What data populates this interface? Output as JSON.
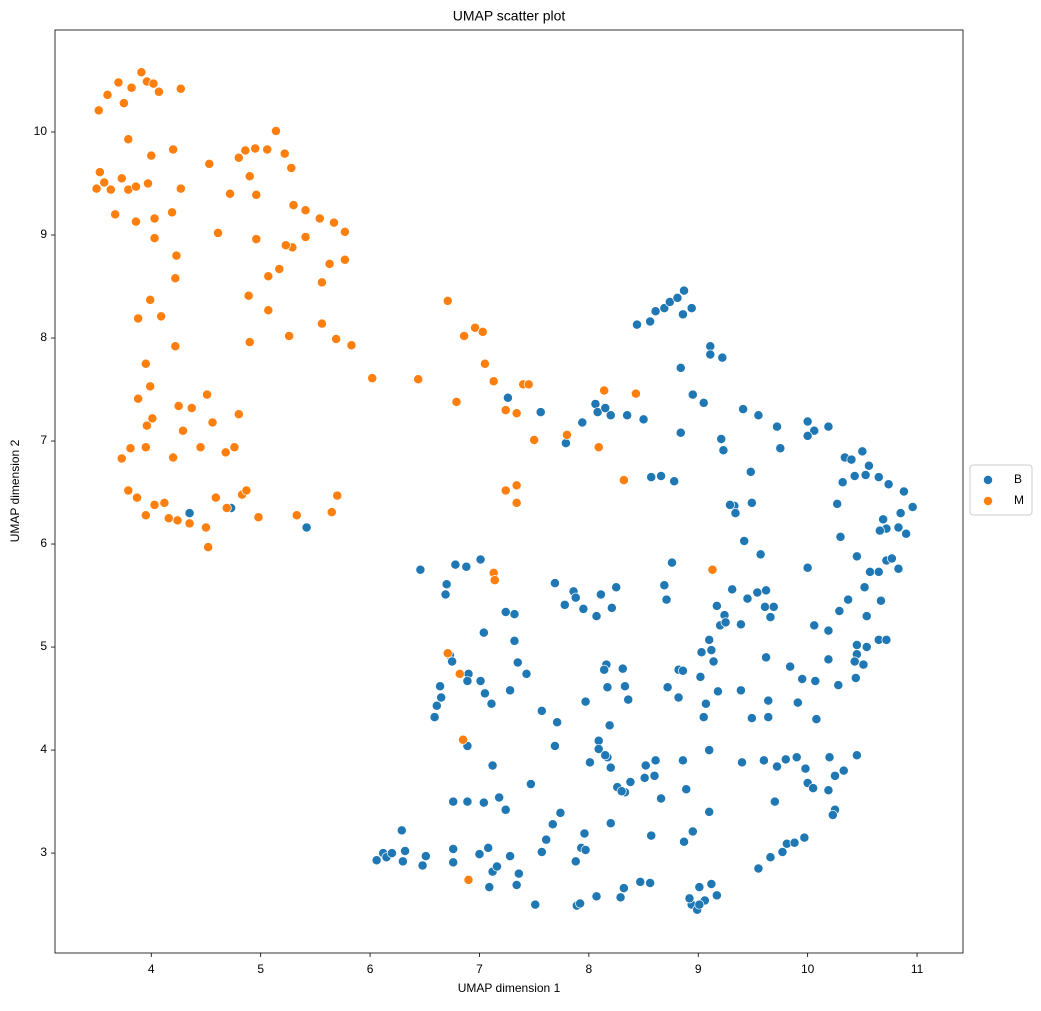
{
  "chart_data": {
    "type": "scatter",
    "title": "UMAP scatter plot",
    "x_label": "UMAP dimension 1",
    "y_label": "UMAP dimension 2",
    "xlim": [
      3.12,
      11.42
    ],
    "ylim": [
      2.03,
      10.99
    ],
    "xticks": [
      4,
      5,
      6,
      7,
      8,
      9,
      10,
      11
    ],
    "yticks": [
      3,
      4,
      5,
      6,
      7,
      8,
      9,
      10
    ],
    "grid": false,
    "legend": "outside-right",
    "series": [
      {
        "name": "B",
        "color": "#1f77b4",
        "x": [
          8.44,
          8.56,
          8.61,
          8.69,
          8.74,
          8.81,
          8.87,
          8.86,
          8.94,
          9.11,
          9.11,
          9.22,
          8.84,
          8.95,
          9.05,
          8.84,
          9.21,
          9.23,
          9.41,
          9.55,
          9.72,
          9.75,
          10.0,
          10.06,
          10.19,
          10.0,
          9.48,
          9.49,
          9.33,
          9.34,
          9.42,
          9.57,
          9.29,
          10.34,
          10.4,
          10.5,
          10.43,
          10.32,
          10.27,
          10.53,
          10.65,
          10.56,
          10.74,
          10.88,
          10.96,
          10.3,
          10.69,
          10.72,
          10.66,
          10.83,
          10.85,
          10.9,
          10.45,
          10.57,
          10.65,
          10.72,
          10.77,
          10.83,
          10.0,
          10.52,
          10.67,
          10.37,
          10.29,
          10.54,
          10.06,
          10.19,
          10.45,
          10.54,
          10.65,
          10.72,
          10.45,
          10.51,
          10.43,
          10.19,
          9.95,
          10.07,
          10.28,
          10.44,
          10.08,
          9.91,
          9.84,
          9.64,
          9.49,
          9.64,
          9.39,
          9.62,
          9.1,
          9.03,
          9.12,
          9.14,
          9.02,
          9.18,
          9.07,
          9.05,
          9.2,
          9.24,
          9.25,
          9.17,
          9.31,
          9.45,
          9.54,
          9.62,
          9.61,
          9.69,
          9.66,
          9.39,
          9.1,
          8.86,
          8.61,
          8.52,
          8.51,
          8.6,
          8.66,
          8.38,
          8.33,
          8.2,
          8.17,
          8.01,
          8.09,
          8.09,
          8.19,
          8.17,
          8.33,
          8.36,
          8.16,
          8.14,
          8.31,
          7.97,
          8.72,
          8.82,
          8.86,
          8.82,
          8.71,
          8.69,
          8.76,
          8.66,
          8.78,
          8.57,
          9.4,
          9.6,
          9.72,
          9.8,
          9.9,
          10.0,
          9.98,
          10.05,
          9.7,
          10.2,
          10.25,
          10.33,
          10.19,
          10.45,
          10.25,
          10.23,
          9.81,
          9.88,
          9.97,
          9.77,
          9.66,
          9.55,
          9.1,
          8.95,
          8.87,
          8.89,
          8.57,
          8.26,
          8.3,
          8.2,
          7.96,
          7.93,
          7.97,
          7.88,
          7.74,
          7.67,
          7.61,
          7.57,
          7.47,
          7.69,
          7.71,
          7.57,
          7.43,
          7.35,
          7.32,
          7.32,
          7.24,
          7.28,
          7.01,
          7.11,
          7.05,
          7.12,
          7.04,
          7.01,
          6.88,
          6.78,
          6.7,
          6.69,
          6.46,
          6.73,
          6.75,
          6.64,
          6.9,
          6.89,
          6.65,
          6.61,
          6.59,
          6.89,
          6.76,
          6.89,
          7.04,
          7.18,
          7.24,
          7.28,
          7.34,
          7.36,
          7.08,
          7.12,
          7.16,
          7.0,
          6.76,
          6.76,
          7.09,
          7.51,
          7.89,
          7.92,
          8.07,
          8.29,
          8.32,
          8.47,
          8.56,
          8.94,
          8.99,
          9.01,
          9.06,
          9.12,
          9.17,
          8.92,
          9.01,
          6.06,
          6.12,
          6.15,
          6.2,
          6.29,
          6.3,
          6.32,
          6.48,
          6.51,
          7.56,
          7.79,
          7.94,
          8.06,
          8.08,
          8.15,
          8.2,
          8.35,
          8.5,
          7.26,
          8.25,
          8.11,
          8.21,
          8.07,
          7.95,
          7.86,
          7.88,
          7.78,
          7.69,
          4.35,
          4.73,
          5.42,
          8.15
        ],
        "values": [
          8.13,
          8.16,
          8.26,
          8.29,
          8.35,
          8.39,
          8.46,
          8.23,
          8.29,
          7.92,
          7.84,
          7.81,
          7.71,
          7.45,
          7.37,
          7.08,
          7.02,
          6.91,
          7.31,
          7.25,
          7.14,
          6.93,
          7.19,
          7.1,
          7.14,
          7.05,
          6.7,
          6.4,
          6.37,
          6.3,
          6.03,
          5.9,
          6.38,
          6.84,
          6.82,
          6.9,
          6.66,
          6.6,
          6.39,
          6.67,
          6.65,
          6.76,
          6.58,
          6.51,
          6.36,
          6.07,
          6.24,
          6.15,
          6.13,
          6.16,
          6.3,
          6.1,
          5.88,
          5.73,
          5.73,
          5.84,
          5.86,
          5.76,
          5.77,
          5.58,
          5.45,
          5.46,
          5.35,
          5.3,
          5.21,
          5.16,
          5.02,
          5.0,
          5.07,
          5.07,
          4.93,
          4.83,
          4.86,
          4.88,
          4.69,
          4.67,
          4.63,
          4.7,
          4.3,
          4.46,
          4.81,
          4.32,
          4.31,
          4.48,
          4.58,
          4.9,
          5.07,
          4.95,
          4.97,
          4.86,
          4.71,
          4.57,
          4.45,
          4.32,
          5.21,
          5.31,
          5.24,
          5.4,
          5.56,
          5.47,
          5.53,
          5.55,
          5.39,
          5.39,
          5.29,
          5.22,
          4.0,
          3.9,
          3.9,
          3.85,
          3.73,
          3.75,
          3.53,
          3.69,
          3.59,
          3.83,
          3.93,
          3.88,
          4.09,
          4.01,
          4.24,
          4.61,
          4.62,
          4.49,
          4.83,
          4.78,
          4.79,
          4.47,
          4.61,
          4.78,
          4.77,
          4.51,
          5.46,
          5.6,
          5.82,
          6.66,
          6.61,
          6.65,
          3.88,
          3.9,
          3.84,
          3.91,
          3.93,
          3.68,
          3.82,
          3.63,
          3.5,
          3.93,
          3.75,
          3.8,
          3.61,
          3.95,
          3.42,
          3.37,
          3.09,
          3.1,
          3.15,
          3.01,
          2.96,
          2.85,
          3.4,
          3.21,
          3.11,
          3.62,
          3.17,
          3.64,
          3.6,
          3.29,
          3.19,
          3.05,
          3.03,
          2.92,
          3.39,
          3.28,
          3.13,
          3.01,
          3.67,
          4.04,
          4.27,
          4.38,
          4.74,
          4.85,
          5.06,
          5.32,
          5.34,
          4.58,
          4.67,
          4.45,
          4.55,
          3.85,
          5.14,
          5.85,
          5.78,
          5.8,
          5.61,
          5.51,
          5.75,
          4.92,
          4.86,
          4.62,
          4.74,
          4.67,
          4.51,
          4.43,
          4.32,
          4.04,
          3.5,
          3.5,
          3.49,
          3.54,
          3.42,
          2.97,
          2.69,
          2.8,
          3.05,
          2.82,
          2.87,
          2.99,
          3.04,
          2.91,
          2.67,
          2.5,
          2.49,
          2.51,
          2.58,
          2.57,
          2.66,
          2.72,
          2.71,
          2.5,
          2.45,
          2.67,
          2.54,
          2.7,
          2.59,
          2.56,
          2.5,
          2.93,
          3.0,
          2.96,
          3.0,
          3.22,
          2.92,
          3.02,
          2.88,
          2.97,
          7.28,
          6.98,
          7.18,
          7.36,
          7.28,
          7.32,
          7.25,
          7.25,
          7.21,
          7.42,
          5.58,
          5.51,
          5.38,
          5.3,
          5.37,
          5.54,
          5.48,
          5.41,
          5.62,
          6.3,
          6.35,
          6.16,
          3.95
        ]
      },
      {
        "name": "M",
        "color": "#ff7f0e",
        "x": [
          3.52,
          3.6,
          3.7,
          3.75,
          3.82,
          3.91,
          3.96,
          4.02,
          4.07,
          4.27,
          3.53,
          3.5,
          3.57,
          3.63,
          3.73,
          3.79,
          3.67,
          3.79,
          3.86,
          3.97,
          4.0,
          4.03,
          4.03,
          3.86,
          4.2,
          4.19,
          4.27,
          4.23,
          4.22,
          3.88,
          3.99,
          4.09,
          4.22,
          4.53,
          4.61,
          4.72,
          4.8,
          4.86,
          4.9,
          4.95,
          4.96,
          4.96,
          4.89,
          5.06,
          5.14,
          5.22,
          5.28,
          5.29,
          5.3,
          5.41,
          5.54,
          5.67,
          5.77,
          5.77,
          5.63,
          5.56,
          5.07,
          5.23,
          5.41,
          5.17,
          4.9,
          5.07,
          5.26,
          5.56,
          5.69,
          5.83,
          3.95,
          3.99,
          3.88,
          3.96,
          4.01,
          3.81,
          3.95,
          3.73,
          4.25,
          4.29,
          4.2,
          4.37,
          4.51,
          4.56,
          4.45,
          4.68,
          4.76,
          4.8,
          3.79,
          3.87,
          3.95,
          4.03,
          4.12,
          4.16,
          4.24,
          4.35,
          4.5,
          4.52,
          4.59,
          4.69,
          4.83,
          4.87,
          4.98,
          5.33,
          5.65,
          5.7,
          6.02,
          6.44,
          6.71,
          6.86,
          6.96,
          7.03,
          7.05,
          7.13,
          6.79,
          7.24,
          7.34,
          7.4,
          7.45,
          7.5,
          7.8,
          8.09,
          8.14,
          8.43,
          7.24,
          7.34,
          7.34,
          8.32,
          7.13,
          7.14,
          6.71,
          6.82,
          6.85,
          6.9,
          9.13
        ],
        "values": [
          10.21,
          10.36,
          10.48,
          10.28,
          10.43,
          10.58,
          10.49,
          10.47,
          10.39,
          10.42,
          9.61,
          9.45,
          9.51,
          9.44,
          9.55,
          9.44,
          9.2,
          9.93,
          9.47,
          9.5,
          9.77,
          9.16,
          8.97,
          9.13,
          9.83,
          9.22,
          9.45,
          8.8,
          8.58,
          8.19,
          8.37,
          8.21,
          7.92,
          9.69,
          9.02,
          9.4,
          9.75,
          9.82,
          9.57,
          9.84,
          9.39,
          8.96,
          8.41,
          9.83,
          10.01,
          9.79,
          9.65,
          8.88,
          9.29,
          9.24,
          9.16,
          9.12,
          9.03,
          8.76,
          8.72,
          8.54,
          8.6,
          8.9,
          8.98,
          8.67,
          7.96,
          8.27,
          8.02,
          8.14,
          7.99,
          7.93,
          7.75,
          7.53,
          7.41,
          7.15,
          7.22,
          6.93,
          6.94,
          6.83,
          7.34,
          7.1,
          6.84,
          7.32,
          7.45,
          7.18,
          6.94,
          6.89,
          6.94,
          7.26,
          6.52,
          6.45,
          6.28,
          6.38,
          6.4,
          6.25,
          6.23,
          6.2,
          6.16,
          5.97,
          6.45,
          6.35,
          6.48,
          6.52,
          6.26,
          6.28,
          6.31,
          6.47,
          7.61,
          7.6,
          8.36,
          8.02,
          8.1,
          8.06,
          7.75,
          7.58,
          7.38,
          7.3,
          7.27,
          7.55,
          7.55,
          7.01,
          7.06,
          6.94,
          7.49,
          7.46,
          6.52,
          6.57,
          6.4,
          6.62,
          5.72,
          5.65,
          4.94,
          4.74,
          4.1,
          2.74,
          5.75
        ]
      }
    ]
  }
}
